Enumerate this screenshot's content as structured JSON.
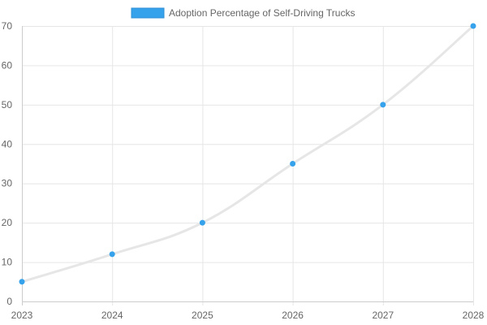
{
  "chart_data": {
    "type": "line",
    "categories": [
      "2023",
      "2024",
      "2025",
      "2026",
      "2027",
      "2028"
    ],
    "series": [
      {
        "name": "Adoption Percentage of Self-Driving Trucks",
        "values": [
          5,
          12,
          20,
          35,
          50,
          70
        ],
        "line_color": "#e6e6e6",
        "point_color": "#36a2eb",
        "legend_fill": "#36a2eb",
        "legend_border": "#2f8fd6"
      }
    ],
    "title": "",
    "xlabel": "",
    "ylabel": "",
    "ylim": [
      0,
      70
    ],
    "yticks": [
      "0",
      "10",
      "20",
      "30",
      "40",
      "50",
      "60",
      "70"
    ],
    "grid": true,
    "legend_position": "top-center"
  }
}
